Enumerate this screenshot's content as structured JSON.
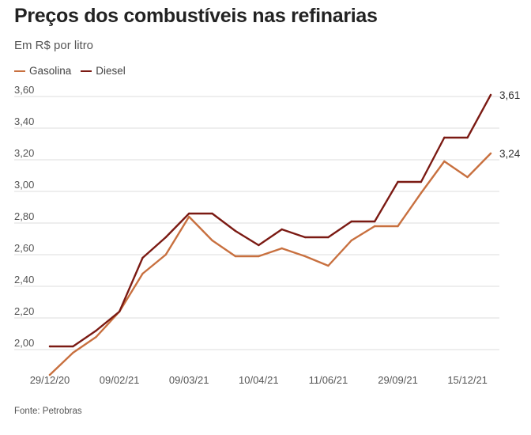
{
  "header": {
    "title": "Preços dos combustíveis nas refinarias",
    "subtitle": "Em R$ por litro"
  },
  "footer": {
    "source": "Fonte: Petrobras"
  },
  "chart_data": {
    "type": "line",
    "title": "Preços dos combustíveis nas refinarias",
    "subtitle": "Em R$ por litro",
    "xlabel": "",
    "ylabel": "",
    "ylim": [
      1.85,
      3.65
    ],
    "yticks": [
      2.0,
      2.2,
      2.4,
      2.6,
      2.8,
      3.0,
      3.2,
      3.4,
      3.6
    ],
    "ytick_labels": [
      "2,00",
      "2,20",
      "2,40",
      "2,60",
      "2,80",
      "3,00",
      "3,20",
      "3,40",
      "3,60"
    ],
    "x_tick_labels": [
      "29/12/20",
      "09/02/21",
      "09/03/21",
      "10/04/21",
      "11/06/21",
      "29/09/21",
      "15/12/21"
    ],
    "x_tick_index": [
      0,
      3,
      6,
      9,
      12,
      15,
      18
    ],
    "grid": true,
    "legend_position": "top-left",
    "series": [
      {
        "name": "Gasolina",
        "color": "#c8703f",
        "values": [
          1.84,
          1.98,
          2.08,
          2.24,
          2.48,
          2.6,
          2.84,
          2.69,
          2.59,
          2.59,
          2.64,
          2.59,
          2.53,
          2.69,
          2.78,
          2.78,
          2.99,
          3.19,
          3.09,
          3.24
        ],
        "end_label": "3,24"
      },
      {
        "name": "Diesel",
        "color": "#7b1a13",
        "values": [
          2.02,
          2.02,
          2.12,
          2.24,
          2.58,
          2.71,
          2.86,
          2.86,
          2.75,
          2.66,
          2.76,
          2.71,
          2.71,
          2.81,
          2.81,
          3.06,
          3.06,
          3.34,
          3.34,
          3.61
        ],
        "end_label": "3,61"
      }
    ]
  }
}
